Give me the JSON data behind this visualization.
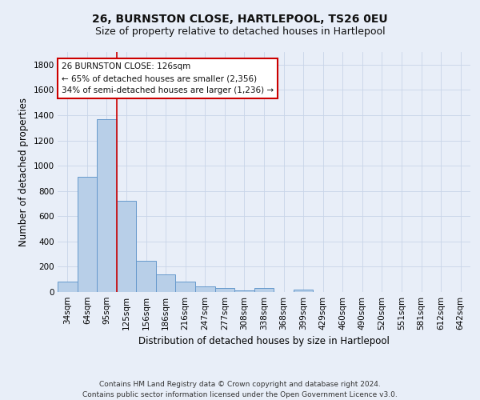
{
  "title": "26, BURNSTON CLOSE, HARTLEPOOL, TS26 0EU",
  "subtitle": "Size of property relative to detached houses in Hartlepool",
  "xlabel": "Distribution of detached houses by size in Hartlepool",
  "ylabel": "Number of detached properties",
  "categories": [
    "34sqm",
    "64sqm",
    "95sqm",
    "125sqm",
    "156sqm",
    "186sqm",
    "216sqm",
    "247sqm",
    "277sqm",
    "308sqm",
    "338sqm",
    "368sqm",
    "399sqm",
    "429sqm",
    "460sqm",
    "490sqm",
    "520sqm",
    "551sqm",
    "581sqm",
    "612sqm",
    "642sqm"
  ],
  "bar_heights": [
    80,
    910,
    1370,
    720,
    245,
    140,
    85,
    45,
    30,
    15,
    30,
    0,
    20,
    0,
    0,
    0,
    0,
    0,
    0,
    0,
    0
  ],
  "bar_color": "#b8cfe8",
  "bar_edge_color": "#6699cc",
  "grid_color": "#c8d4e8",
  "background_color": "#e8eef8",
  "vline_color": "#cc0000",
  "vline_index": 3,
  "annotation_text": "26 BURNSTON CLOSE: 126sqm\n← 65% of detached houses are smaller (2,356)\n34% of semi-detached houses are larger (1,236) →",
  "annotation_box_color": "#ffffff",
  "annotation_box_edge_color": "#cc0000",
  "ylim": [
    0,
    1900
  ],
  "yticks": [
    0,
    200,
    400,
    600,
    800,
    1000,
    1200,
    1400,
    1600,
    1800
  ],
  "footer_text": "Contains HM Land Registry data © Crown copyright and database right 2024.\nContains public sector information licensed under the Open Government Licence v3.0.",
  "title_fontsize": 10,
  "subtitle_fontsize": 9,
  "xlabel_fontsize": 8.5,
  "ylabel_fontsize": 8.5,
  "tick_fontsize": 7.5,
  "annotation_fontsize": 7.5,
  "footer_fontsize": 6.5
}
